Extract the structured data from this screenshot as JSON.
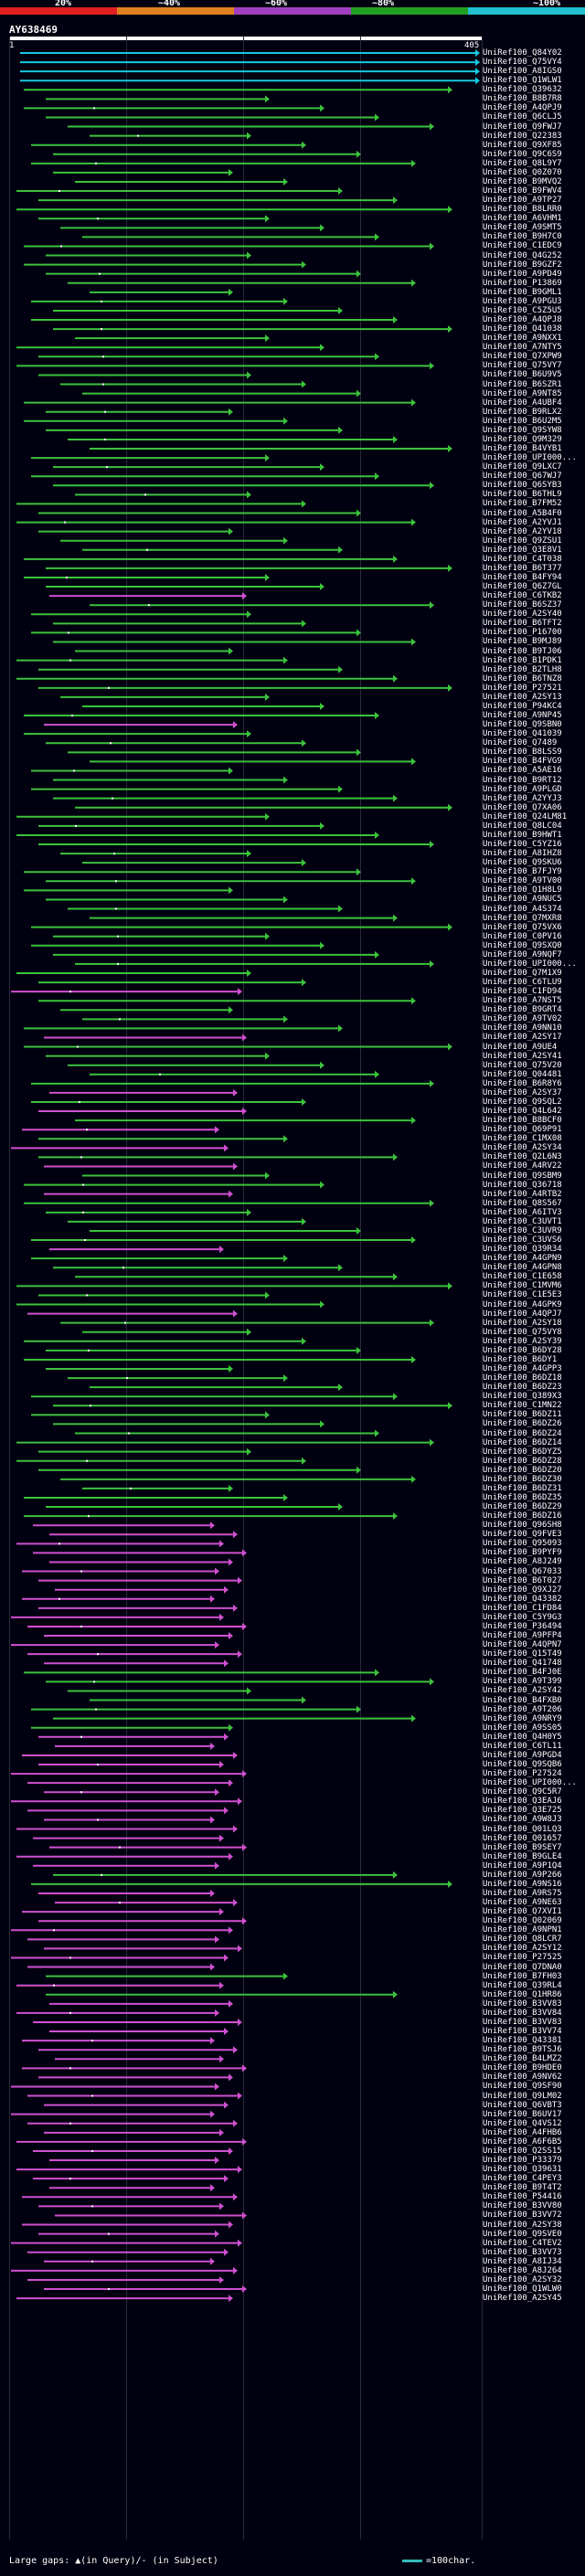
{
  "legend": {
    "labels": [
      "20%",
      "~40%",
      "~60%",
      "~80%",
      "~100%"
    ],
    "colors": [
      "#e02020",
      "#e08020",
      "#a040c0",
      "#20a020",
      "#20c0d0"
    ]
  },
  "query": {
    "id": "AY638469",
    "start": "1",
    "end": "405"
  },
  "hits": [
    {
      "label": "UniRef100_Q84Y02",
      "type": "cyan"
    },
    {
      "label": "UniRef100_Q75VY4",
      "type": "cyan"
    },
    {
      "label": "UniRef100_A8IGS0",
      "type": "cyan"
    },
    {
      "label": "UniRef100_Q1WLW1",
      "type": "cyan"
    },
    {
      "label": "UniRef100_Q39632",
      "type": "green"
    },
    {
      "label": "UniRef100_B8B7R8",
      "type": "green"
    },
    {
      "label": "UniRef100_A4QPJ9",
      "type": "green"
    },
    {
      "label": "UniRef100_Q6CLJ5",
      "type": "green"
    },
    {
      "label": "UniRef100_Q9FWJ7",
      "type": "green"
    },
    {
      "label": "UniRef100_Q22383",
      "type": "green"
    },
    {
      "label": "UniRef100_Q9XF85",
      "type": "green"
    },
    {
      "label": "UniRef100_Q9C6S9",
      "type": "green"
    },
    {
      "label": "UniRef100_Q8L9Y7",
      "type": "green"
    },
    {
      "label": "UniRef100_Q0Z070",
      "type": "green"
    },
    {
      "label": "UniRef100_B9MVQ2",
      "type": "green"
    },
    {
      "label": "UniRef100_B9FWV4",
      "type": "green"
    },
    {
      "label": "UniRef100_A9TP27",
      "type": "green"
    },
    {
      "label": "UniRef100_B8LRR0",
      "type": "green"
    },
    {
      "label": "UniRef100_A6VHM1",
      "type": "green"
    },
    {
      "label": "UniRef100_A9SMT5",
      "type": "green"
    },
    {
      "label": "UniRef100_B9H7C0",
      "type": "green"
    },
    {
      "label": "UniRef100_C1EDC9",
      "type": "green"
    },
    {
      "label": "UniRef100_Q4G252",
      "type": "green"
    },
    {
      "label": "UniRef100_B9GZF2",
      "type": "green"
    },
    {
      "label": "UniRef100_A9PD49",
      "type": "green"
    },
    {
      "label": "UniRef100_P13869",
      "type": "green"
    },
    {
      "label": "UniRef100_B9GML1",
      "type": "green"
    },
    {
      "label": "UniRef100_A9PGU3",
      "type": "green"
    },
    {
      "label": "UniRef100_C5Z5U5",
      "type": "green"
    },
    {
      "label": "UniRef100_A4QPJ8",
      "type": "green"
    },
    {
      "label": "UniRef100_Q41038",
      "type": "green"
    },
    {
      "label": "UniRef100_A9NXX1",
      "type": "green"
    },
    {
      "label": "UniRef100_A7NTY5",
      "type": "green"
    },
    {
      "label": "UniRef100_Q7XPW9",
      "type": "green"
    },
    {
      "label": "UniRef100_Q75VY7",
      "type": "green"
    },
    {
      "label": "UniRef100_B6U9V5",
      "type": "green"
    },
    {
      "label": "UniRef100_B6SZR1",
      "type": "green"
    },
    {
      "label": "UniRef100_A9NT85",
      "type": "green"
    },
    {
      "label": "UniRef100_A4UBF4",
      "type": "green"
    },
    {
      "label": "UniRef100_B9RLX2",
      "type": "green"
    },
    {
      "label": "UniRef100_B6U2M5",
      "type": "green"
    },
    {
      "label": "UniRef100_Q9SYW8",
      "type": "green"
    },
    {
      "label": "UniRef100_Q9M329",
      "type": "green"
    },
    {
      "label": "UniRef100_B4VYB1",
      "type": "green"
    },
    {
      "label": "UniRef100_UPI000...",
      "type": "green"
    },
    {
      "label": "UniRef100_Q9LXC7",
      "type": "green"
    },
    {
      "label": "UniRef100_Q67WJ7",
      "type": "green"
    },
    {
      "label": "UniRef100_Q6SYB3",
      "type": "green"
    },
    {
      "label": "UniRef100_B6THL9",
      "type": "green"
    },
    {
      "label": "UniRef100_B7FM52",
      "type": "green"
    },
    {
      "label": "UniRef100_A5B4F0",
      "type": "green"
    },
    {
      "label": "UniRef100_A2YVJ1",
      "type": "green"
    },
    {
      "label": "UniRef100_A2YV18",
      "type": "green"
    },
    {
      "label": "UniRef100_Q9ZSU1",
      "type": "green"
    },
    {
      "label": "UniRef100_Q3E8V1",
      "type": "green"
    },
    {
      "label": "UniRef100_C4T038",
      "type": "green"
    },
    {
      "label": "UniRef100_B6T377",
      "type": "green"
    },
    {
      "label": "UniRef100_B4FY94",
      "type": "green"
    },
    {
      "label": "UniRef100_Q6Z7GL",
      "type": "green"
    },
    {
      "label": "UniRef100_C6TKB2",
      "type": "magenta"
    },
    {
      "label": "UniRef100_B6SZ37",
      "type": "green"
    },
    {
      "label": "UniRef100_A2SY40",
      "type": "green"
    },
    {
      "label": "UniRef100_B6TFT2",
      "type": "green"
    },
    {
      "label": "UniRef100_P16700",
      "type": "green"
    },
    {
      "label": "UniRef100_B9MJ89",
      "type": "green"
    },
    {
      "label": "UniRef100_B9TJ06",
      "type": "green"
    },
    {
      "label": "UniRef100_B1PDK1",
      "type": "green"
    },
    {
      "label": "UniRef100_B2TLH8",
      "type": "green"
    },
    {
      "label": "UniRef100_B6TNZ8",
      "type": "green"
    },
    {
      "label": "UniRef100_P27521",
      "type": "green"
    },
    {
      "label": "UniRef100_A2SY13",
      "type": "green"
    },
    {
      "label": "UniRef100_P94KC4",
      "type": "green"
    },
    {
      "label": "UniRef100_A9NP45",
      "type": "green"
    },
    {
      "label": "UniRef100_Q9SBN0",
      "type": "magenta"
    },
    {
      "label": "UniRef100_Q41039",
      "type": "green"
    },
    {
      "label": "UniRef100_Q7489",
      "type": "green"
    },
    {
      "label": "UniRef100_B8LSS9",
      "type": "green"
    },
    {
      "label": "UniRef100_B4FVG9",
      "type": "green"
    },
    {
      "label": "UniRef100_A5AE16",
      "type": "green"
    },
    {
      "label": "UniRef100_B9RT12",
      "type": "green"
    },
    {
      "label": "UniRef100_A9PLGD",
      "type": "green"
    },
    {
      "label": "UniRef100_A2YYJ3",
      "type": "green"
    },
    {
      "label": "UniRef100_Q7XA06",
      "type": "green"
    },
    {
      "label": "UniRef100_Q24LM81",
      "type": "green"
    },
    {
      "label": "UniRef100_Q8LC04",
      "type": "green"
    },
    {
      "label": "UniRef100_B9HWT1",
      "type": "green"
    },
    {
      "label": "UniRef100_C5YZ16",
      "type": "green"
    },
    {
      "label": "UniRef100_A8IHZ8",
      "type": "green"
    },
    {
      "label": "UniRef100_Q9SKU6",
      "type": "green"
    },
    {
      "label": "UniRef100_B7FJY9",
      "type": "green"
    },
    {
      "label": "UniRef100_A9TV00",
      "type": "green"
    },
    {
      "label": "UniRef100_Q1H8L9",
      "type": "green"
    },
    {
      "label": "UniRef100_A9NUC5",
      "type": "green"
    },
    {
      "label": "UniRef100_A4S374",
      "type": "green"
    },
    {
      "label": "UniRef100_Q7MXR8",
      "type": "green"
    },
    {
      "label": "UniRef100_Q75VX6",
      "type": "green"
    },
    {
      "label": "UniRef100_C0PV16",
      "type": "green"
    },
    {
      "label": "UniRef100_Q9SXQ0",
      "type": "green"
    },
    {
      "label": "UniRef100_A9NQF7",
      "type": "green"
    },
    {
      "label": "UniRef100_UPI000...",
      "type": "green"
    },
    {
      "label": "UniRef100_Q7M1X9",
      "type": "green"
    },
    {
      "label": "UniRef100_C6TLU9",
      "type": "green"
    },
    {
      "label": "UniRef100_C1FD94",
      "type": "magenta"
    },
    {
      "label": "UniRef100_A7NST5",
      "type": "green"
    },
    {
      "label": "UniRef100_B9GRT4",
      "type": "green"
    },
    {
      "label": "UniRef100_A9TV02",
      "type": "green"
    },
    {
      "label": "UniRef100_A9NN10",
      "type": "green"
    },
    {
      "label": "UniRef100_A2SY17",
      "type": "magenta"
    },
    {
      "label": "UniRef100_A9UE4",
      "type": "green"
    },
    {
      "label": "UniRef100_A2SY41",
      "type": "green"
    },
    {
      "label": "UniRef100_Q75V20",
      "type": "green"
    },
    {
      "label": "UniRef100_Q04481",
      "type": "green"
    },
    {
      "label": "UniRef100_B6R8Y6",
      "type": "green"
    },
    {
      "label": "UniRef100_A2SY37",
      "type": "magenta"
    },
    {
      "label": "UniRef100_Q9SQL2",
      "type": "green"
    },
    {
      "label": "UniRef100_Q4L642",
      "type": "magenta"
    },
    {
      "label": "UniRef100_B8BCF0",
      "type": "green"
    },
    {
      "label": "UniRef100_Q69P91",
      "type": "magenta"
    },
    {
      "label": "UniRef100_C1MX08",
      "type": "green"
    },
    {
      "label": "UniRef100_A2SY34",
      "type": "magenta"
    },
    {
      "label": "UniRef100_Q2L6N3",
      "type": "green"
    },
    {
      "label": "UniRef100_A4RV22",
      "type": "magenta"
    },
    {
      "label": "UniRef100_Q9SBM9",
      "type": "green"
    },
    {
      "label": "UniRef100_Q36718",
      "type": "green"
    },
    {
      "label": "UniRef100_A4RTB2",
      "type": "magenta"
    },
    {
      "label": "UniRef100_Q8S567",
      "type": "green"
    },
    {
      "label": "UniRef100_A6ITV3",
      "type": "green"
    },
    {
      "label": "UniRef100_C3UVT1",
      "type": "green"
    },
    {
      "label": "UniRef100_C3UVR9",
      "type": "green"
    },
    {
      "label": "UniRef100_C3UVS6",
      "type": "green"
    },
    {
      "label": "UniRef100_Q39R34",
      "type": "magenta"
    },
    {
      "label": "UniRef100_A4GPN9",
      "type": "green"
    },
    {
      "label": "UniRef100_A4GPN8",
      "type": "green"
    },
    {
      "label": "UniRef100_C1E658",
      "type": "green"
    },
    {
      "label": "UniRef100_C1MVM6",
      "type": "green"
    },
    {
      "label": "UniRef100_C1E5E3",
      "type": "green"
    },
    {
      "label": "UniRef100_A4GPK9",
      "type": "green"
    },
    {
      "label": "UniRef100_A4QPJ7",
      "type": "magenta"
    },
    {
      "label": "UniRef100_A2SY18",
      "type": "green"
    },
    {
      "label": "UniRef100_Q75VY8",
      "type": "green"
    },
    {
      "label": "UniRef100_A2SY39",
      "type": "green"
    },
    {
      "label": "UniRef100_B6DY28",
      "type": "green"
    },
    {
      "label": "UniRef100_B6DY1",
      "type": "green"
    },
    {
      "label": "UniRef100_A4GPP3",
      "type": "green"
    },
    {
      "label": "UniRef100_B6DZ18",
      "type": "green"
    },
    {
      "label": "UniRef100_B6DZ23",
      "type": "green"
    },
    {
      "label": "UniRef100_Q389X3",
      "type": "green"
    },
    {
      "label": "UniRef100_C1MN22",
      "type": "green"
    },
    {
      "label": "UniRef100_B6DZ11",
      "type": "green"
    },
    {
      "label": "UniRef100_B6DZ26",
      "type": "green"
    },
    {
      "label": "UniRef100_B6DZ24",
      "type": "green"
    },
    {
      "label": "UniRef100_B6DZ14",
      "type": "green"
    },
    {
      "label": "UniRef100_B6DYZ5",
      "type": "green"
    },
    {
      "label": "UniRef100_B6DZ28",
      "type": "green"
    },
    {
      "label": "UniRef100_B6DZ20",
      "type": "green"
    },
    {
      "label": "UniRef100_B6DZ30",
      "type": "green"
    },
    {
      "label": "UniRef100_B6DZ31",
      "type": "green"
    },
    {
      "label": "UniRef100_B6DZ35",
      "type": "green"
    },
    {
      "label": "UniRef100_B6DZ29",
      "type": "green"
    },
    {
      "label": "UniRef100_B6DZ16",
      "type": "green"
    },
    {
      "label": "UniRef100_Q96SH8",
      "type": "magenta"
    },
    {
      "label": "UniRef100_Q9FVE3",
      "type": "magenta"
    },
    {
      "label": "UniRef100_Q95093",
      "type": "magenta"
    },
    {
      "label": "UniRef100_B9PYF9",
      "type": "magenta"
    },
    {
      "label": "UniRef100_A8J249",
      "type": "magenta"
    },
    {
      "label": "UniRef100_Q67033",
      "type": "magenta"
    },
    {
      "label": "UniRef100_B6T027",
      "type": "magenta"
    },
    {
      "label": "UniRef100_Q9XJ27",
      "type": "magenta"
    },
    {
      "label": "UniRef100_Q43382",
      "type": "magenta"
    },
    {
      "label": "UniRef100_C1FD84",
      "type": "magenta"
    },
    {
      "label": "UniRef100_C5Y9G3",
      "type": "magenta"
    },
    {
      "label": "UniRef100_P36494",
      "type": "magenta"
    },
    {
      "label": "UniRef100_A9PFP4",
      "type": "magenta"
    },
    {
      "label": "UniRef100_A4QPN7",
      "type": "magenta"
    },
    {
      "label": "UniRef100_Q15T49",
      "type": "magenta"
    },
    {
      "label": "UniRef100_Q41748",
      "type": "magenta"
    },
    {
      "label": "UniRef100_B4FJ0E",
      "type": "green"
    },
    {
      "label": "UniRef100_A9T399",
      "type": "green"
    },
    {
      "label": "UniRef100_A2SY42",
      "type": "green"
    },
    {
      "label": "UniRef100_B4FXB0",
      "type": "green"
    },
    {
      "label": "UniRef100_A9T206",
      "type": "green"
    },
    {
      "label": "UniRef100_A9NRY9",
      "type": "green"
    },
    {
      "label": "UniRef100_A9SS05",
      "type": "green"
    },
    {
      "label": "UniRef100_Q4H0Y5",
      "type": "magenta"
    },
    {
      "label": "UniRef100_C6TL11",
      "type": "magenta"
    },
    {
      "label": "UniRef100_A9PGD4",
      "type": "magenta"
    },
    {
      "label": "UniRef100_Q9SQB6",
      "type": "magenta"
    },
    {
      "label": "UniRef100_P27524",
      "type": "magenta"
    },
    {
      "label": "UniRef100_UPI000...",
      "type": "magenta"
    },
    {
      "label": "UniRef100_Q9C5R7",
      "type": "magenta"
    },
    {
      "label": "UniRef100_Q3EAJ6",
      "type": "magenta"
    },
    {
      "label": "UniRef100_Q3E725",
      "type": "magenta"
    },
    {
      "label": "UniRef100_A9W8J3",
      "type": "magenta"
    },
    {
      "label": "UniRef100_Q01LQ3",
      "type": "magenta"
    },
    {
      "label": "UniRef100_Q01657",
      "type": "magenta"
    },
    {
      "label": "UniRef100_B9SEY7",
      "type": "magenta"
    },
    {
      "label": "UniRef100_B9GLE4",
      "type": "magenta"
    },
    {
      "label": "UniRef100_A9P1Q4",
      "type": "magenta"
    },
    {
      "label": "UniRef100_A9P266",
      "type": "green"
    },
    {
      "label": "UniRef100_A9NS16",
      "type": "green"
    },
    {
      "label": "UniRef100_A9RS75",
      "type": "magenta"
    },
    {
      "label": "UniRef100_A9NE63",
      "type": "magenta"
    },
    {
      "label": "UniRef100_Q7XVI1",
      "type": "magenta"
    },
    {
      "label": "UniRef100_Q02069",
      "type": "magenta"
    },
    {
      "label": "UniRef100_A9NPN1",
      "type": "magenta"
    },
    {
      "label": "UniRef100_Q8LCR7",
      "type": "magenta"
    },
    {
      "label": "UniRef100_A2SY12",
      "type": "magenta"
    },
    {
      "label": "UniRef100_P27525",
      "type": "magenta"
    },
    {
      "label": "UniRef100_Q7DNA0",
      "type": "magenta"
    },
    {
      "label": "UniRef100_B7FH03",
      "type": "green"
    },
    {
      "label": "UniRef100_Q39RL4",
      "type": "magenta"
    },
    {
      "label": "UniRef100_Q1HR86",
      "type": "green"
    },
    {
      "label": "UniRef100_B3VV83",
      "type": "magenta"
    },
    {
      "label": "UniRef100_B3VV84",
      "type": "magenta"
    },
    {
      "label": "UniRef100_B3VV83",
      "type": "magenta"
    },
    {
      "label": "UniRef100_B3VV74",
      "type": "magenta"
    },
    {
      "label": "UniRef100_Q43381",
      "type": "magenta"
    },
    {
      "label": "UniRef100_B9TSJ6",
      "type": "magenta"
    },
    {
      "label": "UniRef100_B4LMZ2",
      "type": "magenta"
    },
    {
      "label": "UniRef100_B9HDE0",
      "type": "magenta"
    },
    {
      "label": "UniRef100_A9NV62",
      "type": "magenta"
    },
    {
      "label": "UniRef100_Q9SF90",
      "type": "magenta"
    },
    {
      "label": "UniRef100_Q9LM02",
      "type": "magenta"
    },
    {
      "label": "UniRef100_Q6VBT3",
      "type": "magenta"
    },
    {
      "label": "UniRef100_B6UV17",
      "type": "magenta"
    },
    {
      "label": "UniRef100_Q4VS12",
      "type": "magenta"
    },
    {
      "label": "UniRef100_A4FHB6",
      "type": "magenta"
    },
    {
      "label": "UniRef100_A6F6B5",
      "type": "magenta"
    },
    {
      "label": "UniRef100_Q2SS15",
      "type": "magenta"
    },
    {
      "label": "UniRef100_P33379",
      "type": "magenta"
    },
    {
      "label": "UniRef100_Q39631",
      "type": "magenta"
    },
    {
      "label": "UniRef100_C4PEY3",
      "type": "magenta"
    },
    {
      "label": "UniRef100_B9T4T2",
      "type": "magenta"
    },
    {
      "label": "UniRef100_P54416",
      "type": "magenta"
    },
    {
      "label": "UniRef100_B3VV80",
      "type": "magenta"
    },
    {
      "label": "UniRef100_B3VV72",
      "type": "magenta"
    },
    {
      "label": "UniRef100_A2SY38",
      "type": "magenta"
    },
    {
      "label": "UniRef100_Q9SVE0",
      "type": "magenta"
    },
    {
      "label": "UniRef100_C4TEV2",
      "type": "magenta"
    },
    {
      "label": "UniRef100_B3VV73",
      "type": "magenta"
    },
    {
      "label": "UniRef100_A8IJ34",
      "type": "magenta"
    },
    {
      "label": "UniRef100_A8J264",
      "type": "magenta"
    },
    {
      "label": "UniRef100_A2SY32",
      "type": "magenta"
    },
    {
      "label": "UniRef100_Q1WLW0",
      "type": "magenta"
    },
    {
      "label": "UniRef100_A2SY45",
      "type": "magenta"
    }
  ],
  "footer": {
    "gaps_label": "Large gaps: ",
    "gaps_query": "▲(in Query)/",
    "gaps_subject": "- (in Subject)",
    "scale_label": "=100char."
  },
  "colors": {
    "cyan": "#19c8e0",
    "green": "#3cc33c",
    "magenta": "#d050d0",
    "background": "#000010"
  }
}
